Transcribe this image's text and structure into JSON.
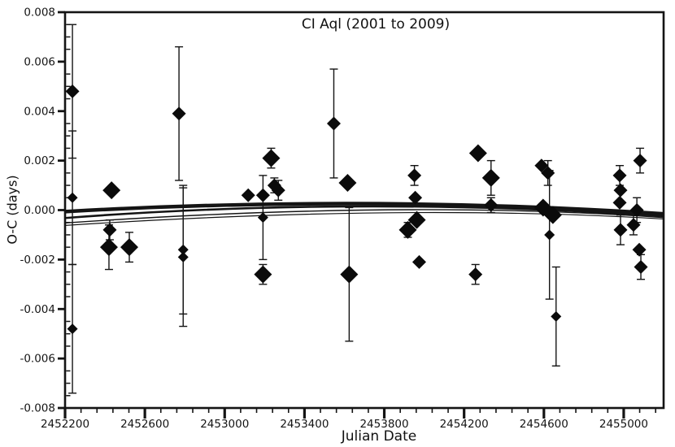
{
  "chart_data": {
    "type": "scatter",
    "title": "CI Aql (2001 to 2009)",
    "xlabel": "Julian Date",
    "ylabel": "O-C (days)",
    "marker": "filled-diamond",
    "marker_color": "#0b0b0b",
    "axis_color": "#141414",
    "grid": false,
    "legend": null,
    "xlim": [
      2452200,
      2455200
    ],
    "ylim": [
      -0.008,
      0.008
    ],
    "x_major_interval": 400,
    "x_minor_interval": 80,
    "y_minor_interval": 0.0005,
    "x_ticks": [
      {
        "value": 2452200,
        "label": "2452200"
      },
      {
        "value": 2452600,
        "label": "2452600"
      },
      {
        "value": 2453000,
        "label": "2453000"
      },
      {
        "value": 2453400,
        "label": "2453400"
      },
      {
        "value": 2453800,
        "label": "2453800"
      },
      {
        "value": 2454200,
        "label": "2454200"
      },
      {
        "value": 2454600,
        "label": "2454600"
      },
      {
        "value": 2455000,
        "label": "2455000"
      }
    ],
    "y_ticks": [
      {
        "value": 0.008,
        "label": "0.008"
      },
      {
        "value": 0.006,
        "label": "0.006"
      },
      {
        "value": 0.004,
        "label": "0.004"
      },
      {
        "value": 0.002,
        "label": "0.002"
      },
      {
        "value": 0.0,
        "label": "0.000"
      },
      {
        "value": -0.002,
        "label": "-0.002"
      },
      {
        "value": -0.004,
        "label": "-0.004"
      },
      {
        "value": -0.006,
        "label": "-0.006"
      },
      {
        "value": -0.008,
        "label": "-0.008"
      }
    ],
    "points": [
      {
        "jd": 2452237,
        "oc": 0.0048,
        "err": 0.0027,
        "size": "md"
      },
      {
        "jd": 2452237,
        "oc": 0.0005,
        "err": 0.0027,
        "size": "sm"
      },
      {
        "jd": 2452237,
        "oc": -0.0048,
        "err": 0.0026,
        "size": "sm"
      },
      {
        "jd": 2452433,
        "oc": 0.0008,
        "err": 0,
        "size": "lg"
      },
      {
        "jd": 2452424,
        "oc": -0.0008,
        "err": 0.0004,
        "size": "md"
      },
      {
        "jd": 2452420,
        "oc": -0.0015,
        "err": 0.0009,
        "size": "lg"
      },
      {
        "jd": 2452522,
        "oc": -0.0015,
        "err": 0.0006,
        "size": "lg"
      },
      {
        "jd": 2452771,
        "oc": 0.0039,
        "err": 0.0027,
        "size": "md"
      },
      {
        "jd": 2452792,
        "oc": -0.0016,
        "err": 0.0026,
        "size": "sm"
      },
      {
        "jd": 2452792,
        "oc": -0.0019,
        "err": 0.0028,
        "size": "sm"
      },
      {
        "jd": 2453118,
        "oc": 0.0006,
        "err": 0,
        "size": "md"
      },
      {
        "jd": 2453192,
        "oc": 0.0006,
        "err": 0,
        "size": "md"
      },
      {
        "jd": 2453233,
        "oc": 0.0021,
        "err": 0.0004,
        "size": "lg"
      },
      {
        "jd": 2453249,
        "oc": 0.001,
        "err": 0.0003,
        "size": "md"
      },
      {
        "jd": 2453269,
        "oc": 0.0008,
        "err": 0.0004,
        "size": "md"
      },
      {
        "jd": 2453192,
        "oc": -0.0003,
        "err": 0.0017,
        "size": "sm"
      },
      {
        "jd": 2453192,
        "oc": -0.0026,
        "err": 0.0004,
        "size": "lg"
      },
      {
        "jd": 2453547,
        "oc": 0.0035,
        "err": 0.0022,
        "size": "md"
      },
      {
        "jd": 2453616,
        "oc": 0.0011,
        "err": 0,
        "size": "lg"
      },
      {
        "jd": 2453624,
        "oc": -0.0026,
        "err": 0.0027,
        "size": "lg"
      },
      {
        "jd": 2453951,
        "oc": 0.0014,
        "err": 0.0004,
        "size": "md"
      },
      {
        "jd": 2453955,
        "oc": 0.0005,
        "err": 0,
        "size": "md"
      },
      {
        "jd": 2453963,
        "oc": -0.0004,
        "err": 0,
        "size": "lg"
      },
      {
        "jd": 2453918,
        "oc": -0.0008,
        "err": 0.0003,
        "size": "lg"
      },
      {
        "jd": 2453975,
        "oc": -0.0021,
        "err": 0,
        "size": "md"
      },
      {
        "jd": 2454270,
        "oc": 0.0023,
        "err": 0,
        "size": "lg"
      },
      {
        "jd": 2454335,
        "oc": 0.0013,
        "err": 0.0007,
        "size": "lg"
      },
      {
        "jd": 2454335,
        "oc": 0.0002,
        "err": 0.0003,
        "size": "md"
      },
      {
        "jd": 2454257,
        "oc": -0.0026,
        "err": 0.0004,
        "size": "md"
      },
      {
        "jd": 2454588,
        "oc": 0.0018,
        "err": 0,
        "size": "md"
      },
      {
        "jd": 2454620,
        "oc": 0.0015,
        "err": 0.0005,
        "size": "md"
      },
      {
        "jd": 2454596,
        "oc": 0.0001,
        "err": 0,
        "size": "lg"
      },
      {
        "jd": 2454645,
        "oc": -0.0002,
        "err": 0,
        "size": "lg"
      },
      {
        "jd": 2454628,
        "oc": -0.001,
        "err": 0.0026,
        "size": "sm"
      },
      {
        "jd": 2454661,
        "oc": -0.0043,
        "err": 0.002,
        "size": "sm"
      },
      {
        "jd": 2455082,
        "oc": 0.002,
        "err": 0.0005,
        "size": "md"
      },
      {
        "jd": 2454980,
        "oc": 0.0014,
        "err": 0.0004,
        "size": "md"
      },
      {
        "jd": 2454984,
        "oc": 0.0008,
        "err": 0,
        "size": "md"
      },
      {
        "jd": 2454980,
        "oc": 0.0003,
        "err": 0,
        "size": "md"
      },
      {
        "jd": 2455066,
        "oc": 0.0,
        "err": 0.0005,
        "size": "md"
      },
      {
        "jd": 2455049,
        "oc": -0.0006,
        "err": 0.0004,
        "size": "md"
      },
      {
        "jd": 2454984,
        "oc": -0.0008,
        "err": 0.0006,
        "size": "md"
      },
      {
        "jd": 2455078,
        "oc": -0.0016,
        "err": 0,
        "size": "md"
      },
      {
        "jd": 2455086,
        "oc": -0.0023,
        "err": 0.0005,
        "size": "md"
      }
    ],
    "fit_curves": [
      {
        "name": "fit-curve-thick",
        "stroke_width": 4.5,
        "peak_jd": 2453700,
        "oc_start": -6e-05,
        "oc_peak": 0.00026,
        "oc_end": -0.00015
      },
      {
        "name": "fit-curve-mid",
        "stroke_width": 2.6,
        "peak_jd": 2453650,
        "oc_start": -0.00032,
        "oc_peak": 0.00015,
        "oc_end": -0.00024
      },
      {
        "name": "fit-curve-thin-a",
        "stroke_width": 1.4,
        "peak_jd": 2453900,
        "oc_start": -0.00052,
        "oc_peak": 1e-05,
        "oc_end": -0.0003
      },
      {
        "name": "fit-curve-thin-b",
        "stroke_width": 1.2,
        "peak_jd": 2453900,
        "oc_start": -0.00062,
        "oc_peak": -0.00011,
        "oc_end": -0.00036
      }
    ]
  }
}
